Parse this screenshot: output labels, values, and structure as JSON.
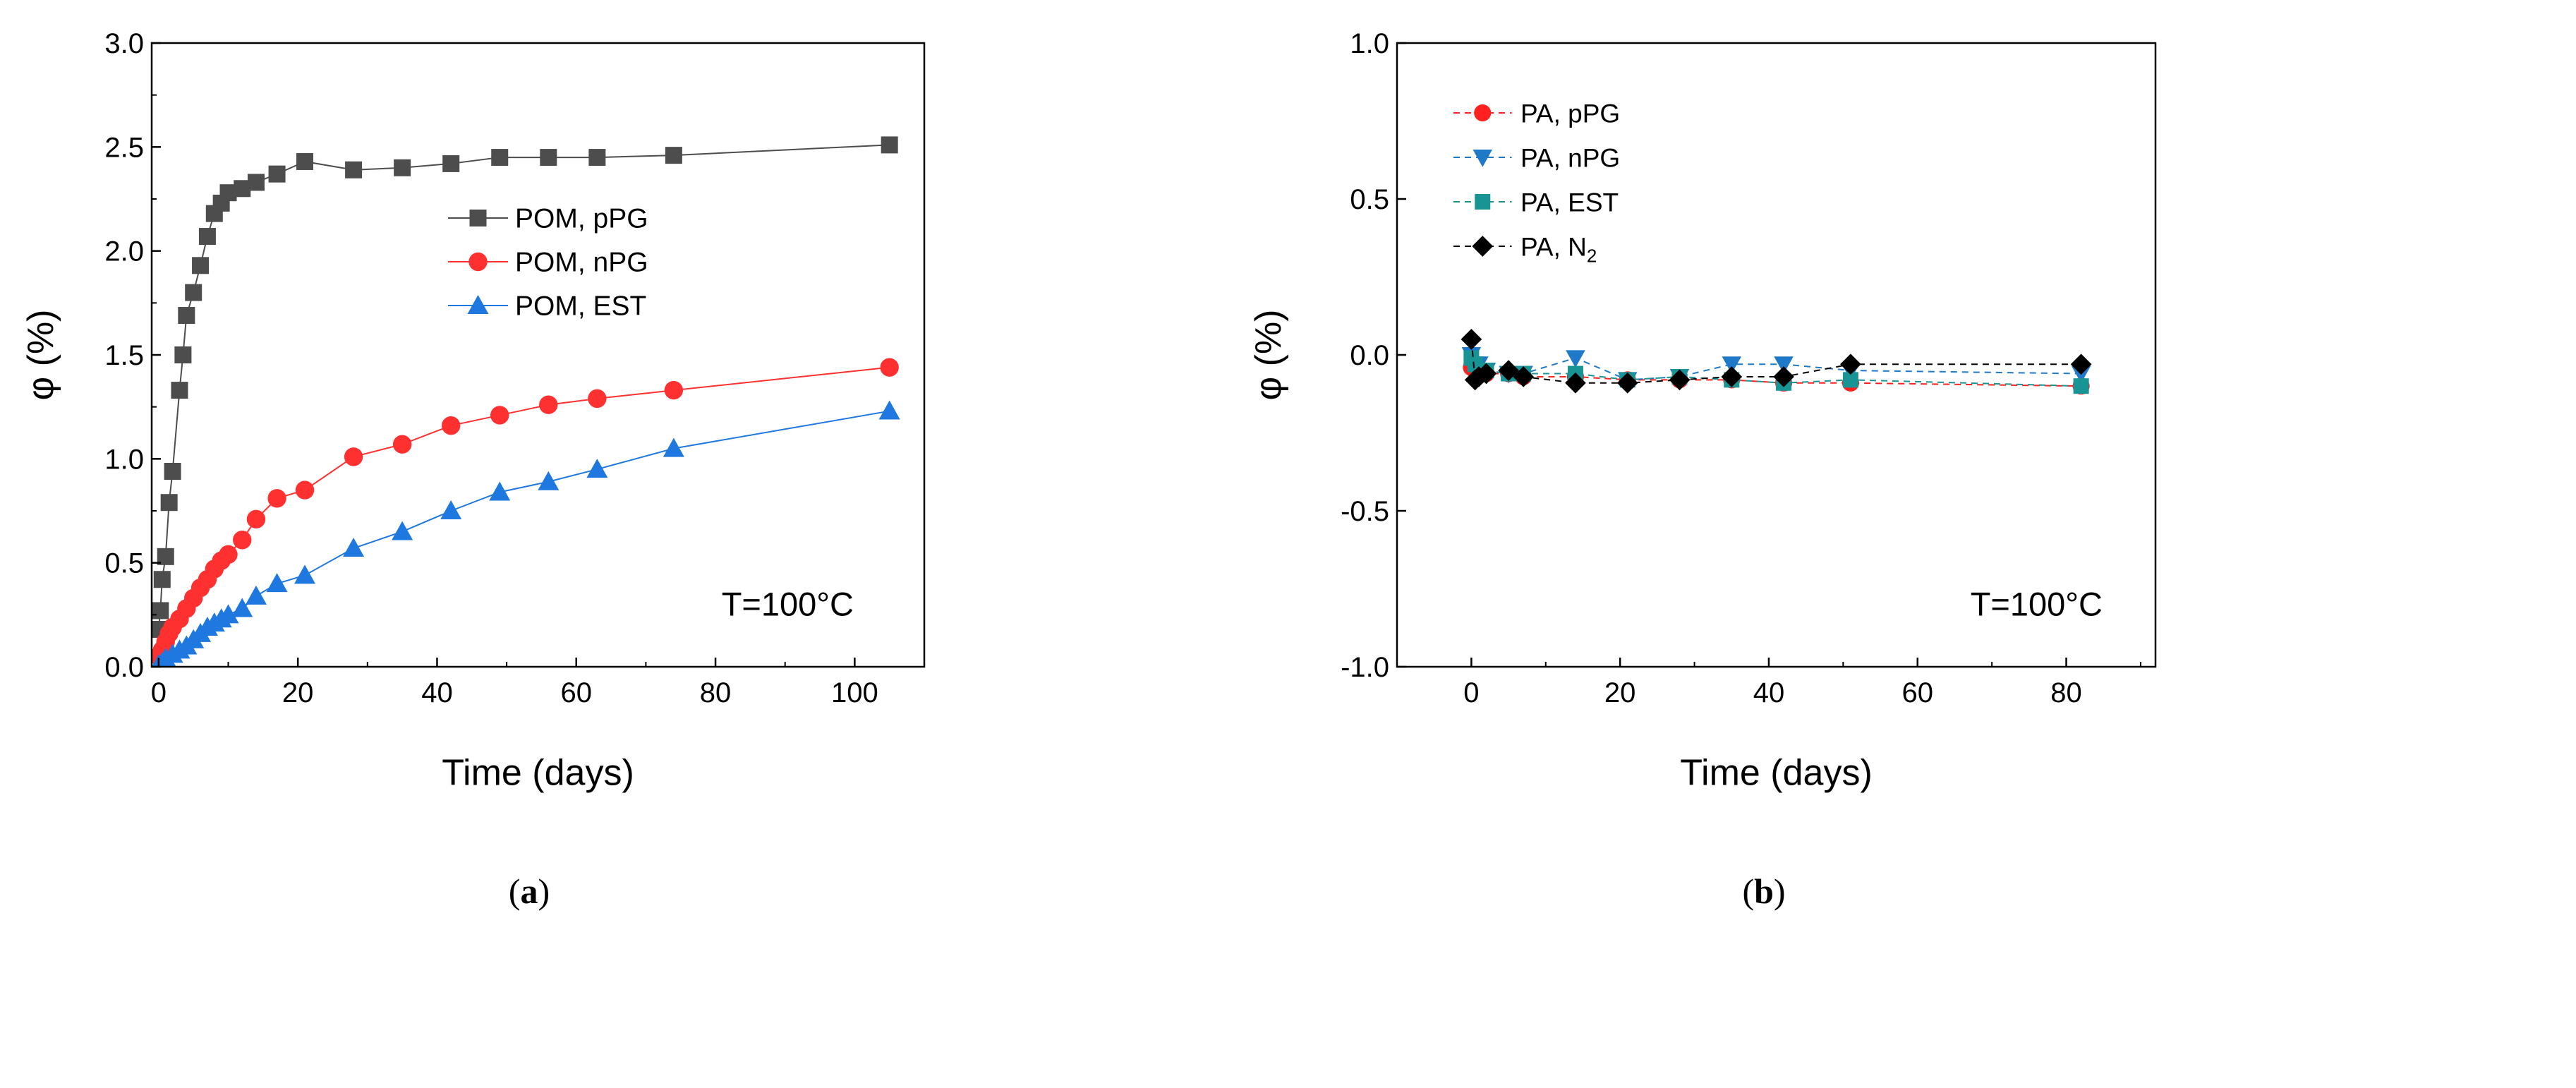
{
  "chart_data": [
    {
      "type": "line",
      "panel_label_open": "(",
      "panel_label_letter": "a",
      "panel_label_close": ")",
      "title": "",
      "xlabel": "Time (days)",
      "ylabel": "φ (%)",
      "xlim": [
        -1,
        110
      ],
      "ylim": [
        0,
        3.0
      ],
      "xticks": [
        0,
        20,
        40,
        60,
        80,
        100
      ],
      "xtick_labels": [
        "0",
        "20",
        "40",
        "60",
        "80",
        "100"
      ],
      "yticks": [
        0.0,
        0.5,
        1.0,
        1.5,
        2.0,
        2.5,
        3.0
      ],
      "ytick_labels": [
        "0.0",
        "0.5",
        "1.0",
        "1.5",
        "2.0",
        "2.5",
        "3.0"
      ],
      "legend_position": "center-right",
      "annotation": "T=100°C",
      "series": [
        {
          "name": "POM, pPG",
          "color": "#4d4d4d",
          "marker": "square",
          "x": [
            0,
            0.25,
            0.5,
            1,
            1.5,
            2,
            3,
            3.5,
            4,
            5,
            6,
            7,
            8,
            9,
            10,
            12,
            14,
            17,
            21,
            28,
            35,
            42,
            49,
            56,
            63,
            74,
            105
          ],
          "y": [
            0.18,
            0.27,
            0.42,
            0.53,
            0.79,
            0.94,
            1.33,
            1.5,
            1.69,
            1.8,
            1.93,
            2.07,
            2.18,
            2.23,
            2.28,
            2.3,
            2.33,
            2.37,
            2.43,
            2.39,
            2.4,
            2.42,
            2.45,
            2.45,
            2.45,
            2.46,
            2.51
          ]
        },
        {
          "name": "POM, nPG",
          "color": "#ff3030",
          "marker": "circle",
          "x": [
            0,
            0.5,
            1,
            1.5,
            2,
            3,
            4,
            5,
            6,
            7,
            8,
            9,
            10,
            12,
            14,
            17,
            21,
            28,
            35,
            42,
            49,
            56,
            63,
            74,
            105
          ],
          "y": [
            0.05,
            0.08,
            0.12,
            0.16,
            0.19,
            0.23,
            0.28,
            0.33,
            0.38,
            0.42,
            0.47,
            0.51,
            0.54,
            0.61,
            0.71,
            0.81,
            0.85,
            1.01,
            1.07,
            1.16,
            1.21,
            1.26,
            1.29,
            1.33,
            1.44
          ]
        },
        {
          "name": "POM, EST",
          "color": "#1f78e0",
          "marker": "triangle-up",
          "x": [
            0,
            0.5,
            1,
            2,
            3,
            4,
            5,
            6,
            7,
            8,
            9,
            10,
            12,
            14,
            17,
            21,
            28,
            35,
            42,
            49,
            56,
            63,
            74,
            105
          ],
          "y": [
            0.01,
            0.02,
            0.04,
            0.06,
            0.08,
            0.1,
            0.13,
            0.16,
            0.19,
            0.21,
            0.23,
            0.25,
            0.28,
            0.34,
            0.4,
            0.44,
            0.57,
            0.65,
            0.75,
            0.84,
            0.89,
            0.95,
            1.05,
            1.23
          ]
        }
      ]
    },
    {
      "type": "line",
      "panel_label_open": "(",
      "panel_label_letter": "b",
      "panel_label_close": ")",
      "title": "",
      "xlabel": "Time (days)",
      "ylabel": "φ (%)",
      "xlim": [
        -10,
        92
      ],
      "ylim": [
        -1.0,
        1.0
      ],
      "xticks": [
        0,
        20,
        40,
        60,
        80
      ],
      "xtick_labels": [
        "0",
        "20",
        "40",
        "60",
        "80"
      ],
      "yticks": [
        -1.0,
        -0.5,
        0.0,
        0.5,
        1.0
      ],
      "ytick_labels": [
        "-1.0",
        "-0.5",
        "0.0",
        "0.5",
        "1.0"
      ],
      "legend_position": "top-left",
      "annotation": "T=100°C",
      "series": [
        {
          "name": "PA, pPG",
          "legend_main": "PA, pPG",
          "legend_sub": "",
          "color": "#ff2020",
          "marker": "circle",
          "x": [
            0,
            0.5,
            1,
            2,
            5,
            7,
            14,
            21,
            28,
            35,
            42,
            51,
            82
          ],
          "y": [
            -0.04,
            -0.05,
            -0.05,
            -0.06,
            -0.06,
            -0.07,
            -0.07,
            -0.08,
            -0.08,
            -0.08,
            -0.09,
            -0.09,
            -0.1
          ]
        },
        {
          "name": "PA, nPG",
          "legend_main": "PA, nPG",
          "legend_sub": "",
          "color": "#1f78c8",
          "marker": "triangle-down",
          "x": [
            0,
            0.5,
            1,
            2,
            5,
            7,
            14,
            21,
            28,
            35,
            42,
            51,
            82
          ],
          "y": [
            0.0,
            -0.03,
            -0.03,
            -0.05,
            -0.06,
            -0.06,
            -0.01,
            -0.08,
            -0.07,
            -0.03,
            -0.03,
            -0.05,
            -0.06
          ]
        },
        {
          "name": "PA, EST",
          "legend_main": "PA, EST",
          "legend_sub": "",
          "color": "#189494",
          "marker": "square",
          "x": [
            0,
            0.5,
            1,
            2,
            5,
            7,
            14,
            21,
            28,
            35,
            42,
            51,
            82
          ],
          "y": [
            -0.01,
            -0.03,
            -0.05,
            -0.05,
            -0.06,
            -0.06,
            -0.06,
            -0.08,
            -0.07,
            -0.08,
            -0.09,
            -0.08,
            -0.1
          ]
        },
        {
          "name": "PA, N2",
          "legend_main": "PA, N",
          "legend_sub": "2",
          "color": "#000000",
          "marker": "diamond",
          "x": [
            0,
            0.5,
            1,
            2,
            5,
            7,
            14,
            21,
            28,
            35,
            42,
            51,
            82
          ],
          "y": [
            0.05,
            -0.08,
            -0.07,
            -0.06,
            -0.05,
            -0.07,
            -0.09,
            -0.09,
            -0.08,
            -0.07,
            -0.07,
            -0.03,
            -0.03
          ]
        }
      ]
    }
  ]
}
